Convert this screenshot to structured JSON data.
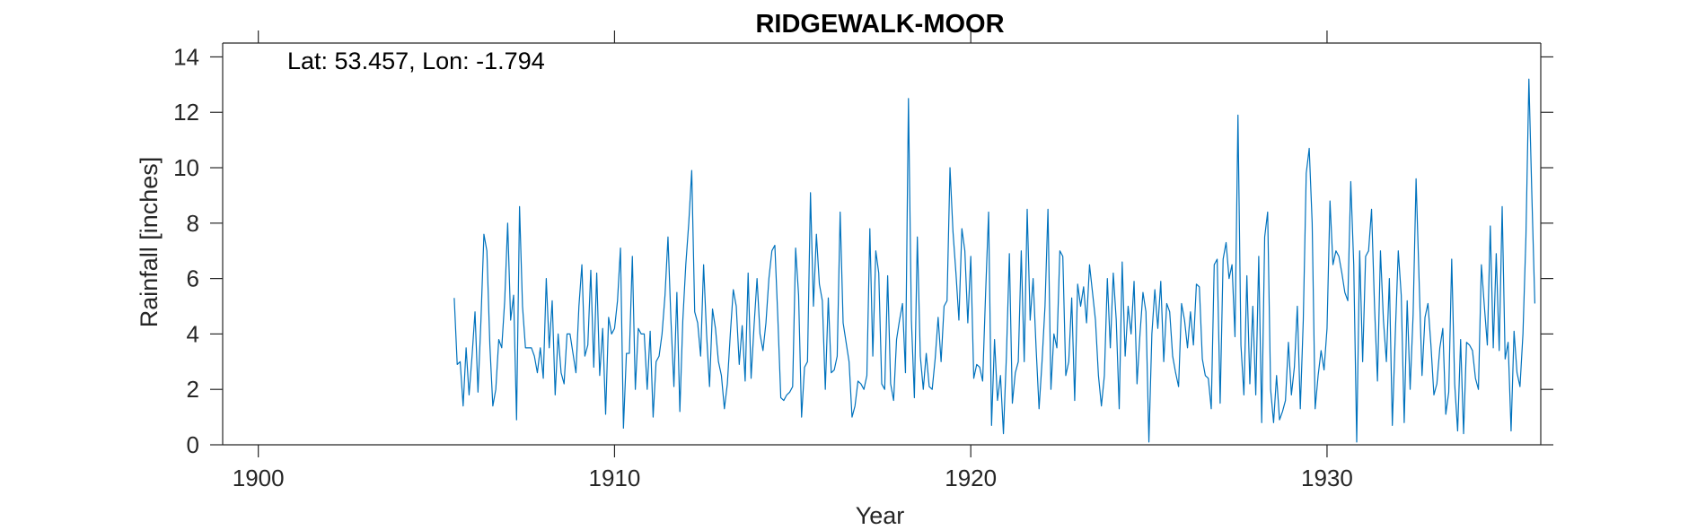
{
  "chart_data": {
    "type": "line",
    "title": "RIDGEWALK-MOOR",
    "annotation": "Lat: 53.457, Lon: -1.794",
    "xlabel": "Year",
    "ylabel": "Rainfall [inches]",
    "xlim": [
      1899,
      1936
    ],
    "ylim": [
      0,
      14.5
    ],
    "xticks": [
      1900,
      1910,
      1920,
      1930
    ],
    "yticks": [
      0,
      2,
      4,
      6,
      8,
      10,
      12,
      14
    ],
    "grid": false,
    "line_color": "#0072BD",
    "series": [
      {
        "x_start": 1905.5,
        "x_step": 0.0833333,
        "values": [
          5.3,
          2.9,
          3.0,
          1.4,
          3.5,
          1.8,
          3.2,
          4.8,
          1.9,
          4.5,
          7.6,
          7.0,
          3.6,
          1.4,
          2.0,
          3.8,
          3.5,
          5.2,
          8.0,
          4.5,
          5.4,
          0.9,
          8.6,
          5.0,
          3.5,
          3.5,
          3.5,
          3.2,
          2.6,
          3.5,
          2.4,
          6.0,
          3.5,
          5.2,
          1.8,
          4.0,
          2.6,
          2.2,
          4.0,
          4.0,
          3.3,
          2.6,
          5.0,
          6.5,
          3.2,
          3.6,
          6.3,
          2.8,
          6.2,
          2.5,
          4.2,
          1.1,
          4.6,
          4.0,
          4.2,
          5.2,
          7.1,
          0.6,
          3.3,
          3.3,
          6.8,
          2.0,
          4.2,
          4.0,
          4.0,
          2.0,
          4.1,
          1.0,
          3.0,
          3.2,
          4.0,
          5.4,
          7.5,
          4.5,
          2.1,
          5.5,
          1.2,
          4.5,
          6.5,
          8.0,
          9.9,
          4.8,
          4.4,
          3.2,
          6.5,
          4.0,
          2.1,
          4.9,
          4.2,
          3.0,
          2.5,
          1.3,
          2.2,
          4.0,
          5.6,
          5.0,
          2.9,
          4.3,
          2.3,
          6.2,
          2.4,
          4.3,
          6.0,
          4.0,
          3.4,
          4.4,
          6.0,
          7.0,
          7.2,
          4.6,
          1.7,
          1.6,
          1.8,
          1.9,
          2.1,
          7.1,
          5.4,
          1.0,
          2.8,
          3.0,
          9.1,
          5.0,
          7.6,
          5.8,
          5.2,
          2.0,
          5.3,
          2.6,
          2.7,
          3.2,
          8.4,
          4.4,
          3.7,
          3.0,
          1.0,
          1.4,
          2.3,
          2.2,
          2.0,
          2.5,
          7.8,
          3.2,
          7.0,
          6.2,
          2.2,
          2.0,
          6.1,
          2.2,
          1.6,
          3.8,
          4.5,
          5.1,
          2.6,
          12.5,
          4.5,
          1.7,
          7.5,
          3.2,
          2.0,
          3.3,
          2.1,
          2.0,
          3.1,
          4.6,
          3.0,
          5.0,
          5.2,
          10.0,
          7.7,
          6.2,
          4.5,
          7.8,
          7.0,
          4.4,
          6.8,
          2.4,
          2.9,
          2.8,
          2.3,
          5.5,
          8.4,
          0.7,
          3.8,
          1.6,
          2.5,
          0.4,
          3.2,
          6.9,
          1.5,
          2.6,
          3.0,
          7.0,
          3.0,
          8.5,
          4.5,
          6.0,
          3.5,
          1.3,
          3.0,
          5.0,
          8.5,
          2.0,
          4.0,
          3.5,
          7.0,
          6.8,
          2.5,
          3.0,
          5.3,
          1.6,
          5.8,
          5.0,
          5.7,
          4.4,
          6.5,
          5.5,
          4.5,
          2.5,
          1.4,
          2.5,
          6.0,
          3.5,
          6.2,
          4.5,
          1.3,
          6.6,
          3.2,
          5.0,
          4.0,
          5.9,
          2.2,
          4.0,
          5.5,
          4.8,
          0.1,
          4.0,
          5.6,
          4.2,
          5.9,
          3.0,
          5.1,
          4.8,
          3.2,
          2.6,
          2.1,
          5.1,
          4.5,
          3.5,
          4.8,
          3.6,
          5.8,
          5.7,
          3.1,
          2.5,
          2.4,
          1.3,
          6.5,
          6.7,
          1.5,
          6.7,
          7.3,
          6.0,
          6.5,
          3.9,
          11.9,
          3.6,
          1.8,
          6.1,
          2.2,
          5.0,
          1.8,
          6.8,
          0.8,
          7.5,
          8.4,
          2.0,
          0.8,
          2.5,
          0.9,
          1.2,
          1.6,
          3.7,
          1.8,
          2.8,
          5.0,
          1.3,
          4.5,
          9.8,
          10.7,
          8.0,
          1.3,
          2.5,
          3.4,
          2.7,
          4.2,
          8.8,
          6.5,
          7.0,
          6.8,
          6.2,
          5.5,
          5.2,
          9.5,
          6.5,
          0.1,
          7.0,
          3.0,
          6.8,
          7.0,
          8.5,
          5.0,
          2.3,
          7.0,
          4.5,
          3.0,
          6.0,
          0.7,
          4.0,
          7.0,
          5.4,
          0.8,
          5.2,
          2.0,
          4.7,
          9.6,
          6.0,
          2.5,
          4.6,
          5.1,
          3.6,
          1.8,
          2.2,
          3.5,
          4.2,
          1.1,
          1.9,
          6.7,
          2.2,
          0.5,
          3.8,
          0.4,
          3.7,
          3.6,
          3.4,
          2.4,
          2.0,
          6.5,
          5.0,
          3.6,
          7.9,
          3.5,
          6.9,
          3.4,
          8.6,
          3.1,
          3.7,
          0.5,
          4.1,
          2.6,
          2.1,
          4.0,
          7.5,
          13.2,
          9.0,
          5.1
        ]
      }
    ]
  }
}
